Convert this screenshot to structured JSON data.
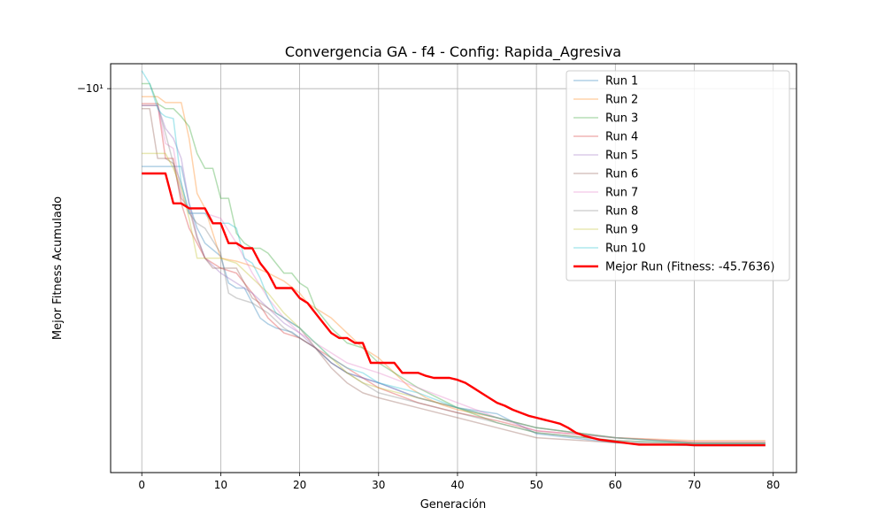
{
  "chart_data": {
    "type": "line",
    "title": "Convergencia GA - f4 - Config: Rapida_Agresiva",
    "xlabel": "Generación",
    "ylabel": "Mejor Fitness Acumulado",
    "xlim": [
      -3.95,
      82.95
    ],
    "x_ticks": [
      0,
      10,
      20,
      30,
      40,
      50,
      60,
      70,
      80
    ],
    "y_scale": "symlog",
    "y_ticks": [
      {
        "value": -10,
        "label": "−10¹"
      }
    ],
    "ylim": [
      -48.5,
      -7.5
    ],
    "grid": true,
    "legend_position": "top-right",
    "series": [
      {
        "name": "Run 1",
        "color": "#1f77b4",
        "alpha": 0.35,
        "x": [
          0,
          5,
          6,
          7,
          8,
          10,
          11,
          12,
          13,
          14,
          15,
          16,
          17,
          18,
          19,
          20,
          22,
          24,
          26,
          28,
          30,
          35,
          40,
          45,
          50,
          60,
          70,
          79
        ],
        "values": [
          -17.8,
          -17.8,
          -21.5,
          -24.0,
          -25.5,
          -26.8,
          -29.5,
          -30.0,
          -30.0,
          -31.5,
          -33.0,
          -33.6,
          -34.0,
          -34.2,
          -34.4,
          -35.0,
          -36.0,
          -37.5,
          -38.5,
          -39.0,
          -39.5,
          -41.0,
          -42.0,
          -42.6,
          -44.6,
          -45.5,
          -45.8,
          -45.8
        ]
      },
      {
        "name": "Run 2",
        "color": "#ff7f0e",
        "alpha": 0.35,
        "x": [
          0,
          2,
          3,
          5,
          6,
          7,
          8,
          10,
          12,
          14,
          16,
          18,
          20,
          21,
          22,
          24,
          26,
          28,
          30,
          32,
          34,
          36,
          38,
          40,
          45,
          50,
          60,
          70,
          79
        ],
        "values": [
          -10.8,
          -10.8,
          -11.4,
          -11.4,
          -15.0,
          -20.5,
          -22.0,
          -27.0,
          -27.3,
          -27.8,
          -28.5,
          -29.3,
          -30.5,
          -31.5,
          -32.0,
          -33.0,
          -34.5,
          -36.0,
          -37.0,
          -38.5,
          -40.0,
          -41.0,
          -41.7,
          -42.2,
          -43.0,
          -44.0,
          -45.0,
          -45.3,
          -45.3
        ]
      },
      {
        "name": "Run 3",
        "color": "#2ca02c",
        "alpha": 0.35,
        "x": [
          0,
          1,
          2,
          3,
          4,
          5,
          6,
          7,
          8,
          9,
          10,
          11,
          12,
          13,
          14,
          15,
          16,
          17,
          18,
          19,
          20,
          21,
          22,
          24,
          26,
          28,
          30,
          35,
          40,
          45,
          50,
          60,
          70,
          79
        ],
        "values": [
          -9.5,
          -9.5,
          -11.5,
          -12.0,
          -12.0,
          -12.8,
          -13.8,
          -16.5,
          -18.0,
          -18.0,
          -21.0,
          -21.0,
          -24.5,
          -25.5,
          -26.0,
          -26.0,
          -26.5,
          -27.5,
          -28.5,
          -28.5,
          -29.5,
          -30.0,
          -32.0,
          -34.0,
          -35.5,
          -36.0,
          -37.5,
          -40.0,
          -42.0,
          -43.5,
          -44.5,
          -45.3,
          -45.6,
          -45.6
        ]
      },
      {
        "name": "Run 4",
        "color": "#d62728",
        "alpha": 0.35,
        "x": [
          0,
          2,
          3,
          4,
          5,
          6,
          7,
          8,
          10,
          12,
          14,
          16,
          18,
          20,
          22,
          24,
          26,
          28,
          30,
          35,
          40,
          45,
          50,
          60,
          70,
          79
        ],
        "values": [
          -11.5,
          -11.5,
          -17.0,
          -17.0,
          -21.5,
          -24.0,
          -25.5,
          -27.0,
          -28.0,
          -28.5,
          -30.5,
          -33.0,
          -34.5,
          -35.0,
          -36.0,
          -37.0,
          -38.0,
          -39.0,
          -40.0,
          -41.5,
          -42.5,
          -43.3,
          -44.3,
          -45.0,
          -45.5,
          -45.5
        ]
      },
      {
        "name": "Run 5",
        "color": "#9467bd",
        "alpha": 0.35,
        "x": [
          0,
          2,
          3,
          4,
          5,
          6,
          7,
          8,
          10,
          12,
          14,
          16,
          18,
          20,
          22,
          24,
          26,
          28,
          30,
          35,
          40,
          45,
          50,
          60,
          70,
          79
        ],
        "values": [
          -11.7,
          -11.7,
          -14.0,
          -15.0,
          -17.0,
          -21.5,
          -24.8,
          -27.0,
          -28.5,
          -29.5,
          -30.5,
          -32.0,
          -33.5,
          -34.5,
          -36.0,
          -37.5,
          -38.5,
          -39.0,
          -39.5,
          -41.0,
          -42.0,
          -43.0,
          -44.0,
          -45.0,
          -45.5,
          -45.5
        ]
      },
      {
        "name": "Run 6",
        "color": "#8c564b",
        "alpha": 0.35,
        "x": [
          0,
          1,
          2,
          3,
          4,
          5,
          6,
          7,
          8,
          9,
          10,
          12,
          14,
          16,
          18,
          20,
          22,
          24,
          26,
          28,
          30,
          35,
          40,
          45,
          50,
          60,
          70,
          79
        ],
        "values": [
          -12.0,
          -12.0,
          -17.0,
          -17.0,
          -17.5,
          -21.0,
          -22.0,
          -25.0,
          -27.0,
          -28.0,
          -28.0,
          -28.0,
          -31.0,
          -32.0,
          -33.0,
          -34.0,
          -36.0,
          -38.0,
          -39.5,
          -40.5,
          -41.0,
          -42.0,
          -43.0,
          -44.0,
          -45.0,
          -45.5,
          -45.7,
          -45.7
        ]
      },
      {
        "name": "Run 7",
        "color": "#e377c2",
        "alpha": 0.35,
        "x": [
          0,
          2,
          3,
          4,
          5,
          6,
          7,
          8,
          10,
          12,
          14,
          16,
          18,
          20,
          22,
          24,
          26,
          28,
          30,
          35,
          40,
          45,
          50,
          60,
          70,
          79
        ],
        "values": [
          -11.7,
          -11.7,
          -15.5,
          -16.0,
          -20.5,
          -22.5,
          -22.5,
          -22.5,
          -23.0,
          -25.5,
          -28.5,
          -31.0,
          -33.0,
          -34.5,
          -35.5,
          -36.5,
          -37.5,
          -38.0,
          -38.5,
          -40.0,
          -41.5,
          -43.0,
          -44.3,
          -45.0,
          -45.4,
          -45.4
        ]
      },
      {
        "name": "Run 8",
        "color": "#7f7f7f",
        "alpha": 0.35,
        "x": [
          0,
          2,
          3,
          4,
          5,
          6,
          7,
          8,
          10,
          11,
          12,
          14,
          16,
          18,
          20,
          22,
          24,
          26,
          28,
          30,
          35,
          40,
          45,
          50,
          60,
          70,
          79
        ],
        "values": [
          -11.7,
          -11.7,
          -14.5,
          -17.5,
          -19.5,
          -22.5,
          -23.5,
          -24.0,
          -26.5,
          -30.5,
          -31.0,
          -31.5,
          -32.5,
          -34.0,
          -35.0,
          -36.0,
          -37.5,
          -38.5,
          -39.5,
          -40.5,
          -41.5,
          -42.5,
          -43.5,
          -44.5,
          -45.3,
          -45.6,
          -45.6
        ]
      },
      {
        "name": "Run 9",
        "color": "#bcbd22",
        "alpha": 0.35,
        "x": [
          0,
          2,
          3,
          4,
          5,
          6,
          7,
          8,
          10,
          12,
          14,
          16,
          18,
          20,
          22,
          24,
          26,
          28,
          30,
          35,
          40,
          45,
          50,
          60,
          70,
          79
        ],
        "values": [
          -16.5,
          -16.5,
          -16.5,
          -18.0,
          -20.0,
          -23.0,
          -27.0,
          -27.0,
          -27.0,
          -27.5,
          -29.0,
          -30.5,
          -32.5,
          -34.0,
          -35.5,
          -37.0,
          -38.5,
          -39.5,
          -40.0,
          -41.0,
          -42.0,
          -43.0,
          -44.0,
          -45.0,
          -45.5,
          -45.5
        ]
      },
      {
        "name": "Run 10",
        "color": "#17becf",
        "alpha": 0.35,
        "x": [
          0,
          1,
          2,
          2.5,
          3,
          4,
          5,
          6,
          7,
          8,
          9,
          10,
          11,
          12,
          13,
          14,
          15,
          16,
          17,
          18,
          20,
          22,
          24,
          26,
          28,
          30,
          35,
          40,
          45,
          50,
          60,
          70,
          79
        ],
        "values": [
          -8.2,
          -9.5,
          -12.0,
          -12.5,
          -12.8,
          -13.0,
          -19.5,
          -22.5,
          -22.5,
          -22.5,
          -23.5,
          -23.5,
          -23.5,
          -24.0,
          -27.0,
          -27.5,
          -29.0,
          -31.0,
          -32.5,
          -33.0,
          -34.0,
          -35.5,
          -37.0,
          -38.0,
          -38.5,
          -39.5,
          -40.5,
          -42.0,
          -43.0,
          -44.0,
          -45.0,
          -45.6,
          -45.6
        ]
      },
      {
        "name": "Mejor Run (Fitness: -45.7636)",
        "color": "#ff0000",
        "alpha": 1.0,
        "x": [
          0,
          1,
          2,
          3,
          4,
          5,
          6,
          7,
          8,
          9,
          10,
          11,
          12,
          13,
          14,
          15,
          16,
          17,
          18,
          19,
          20,
          21,
          22,
          23,
          24,
          25,
          26,
          27,
          28,
          29,
          30,
          31,
          32,
          33,
          34,
          35,
          36,
          37,
          38,
          39,
          40,
          41,
          42,
          43,
          44,
          45,
          46,
          47,
          48,
          49,
          50,
          51,
          52,
          53,
          54,
          55,
          56,
          57,
          58,
          59,
          60,
          61,
          62,
          63,
          64,
          65,
          66,
          67,
          68,
          69,
          70,
          71,
          72,
          73,
          74,
          75,
          76,
          77,
          78,
          79
        ],
        "values": [
          -18.5,
          -18.5,
          -18.5,
          -18.5,
          -21.5,
          -21.5,
          -22.0,
          -22.0,
          -22.0,
          -23.5,
          -23.5,
          -25.5,
          -25.5,
          -26.0,
          -26.0,
          -27.5,
          -28.5,
          -30.0,
          -30.0,
          -30.0,
          -31.0,
          -31.5,
          -32.5,
          -33.5,
          -34.5,
          -35.0,
          -35.0,
          -35.5,
          -35.5,
          -37.5,
          -37.5,
          -37.5,
          -37.5,
          -38.5,
          -38.5,
          -38.5,
          -38.8,
          -39.0,
          -39.0,
          -39.0,
          -39.2,
          -39.5,
          -40.0,
          -40.5,
          -41.0,
          -41.5,
          -41.8,
          -42.2,
          -42.5,
          -42.8,
          -43.0,
          -43.2,
          -43.4,
          -43.6,
          -44.0,
          -44.5,
          -44.8,
          -45.0,
          -45.2,
          -45.3,
          -45.4,
          -45.5,
          -45.6,
          -45.7,
          -45.7,
          -45.7,
          -45.7,
          -45.7,
          -45.7,
          -45.7,
          -45.76,
          -45.76,
          -45.76,
          -45.76,
          -45.76,
          -45.76,
          -45.76,
          -45.76,
          -45.76,
          -45.76
        ]
      }
    ]
  }
}
